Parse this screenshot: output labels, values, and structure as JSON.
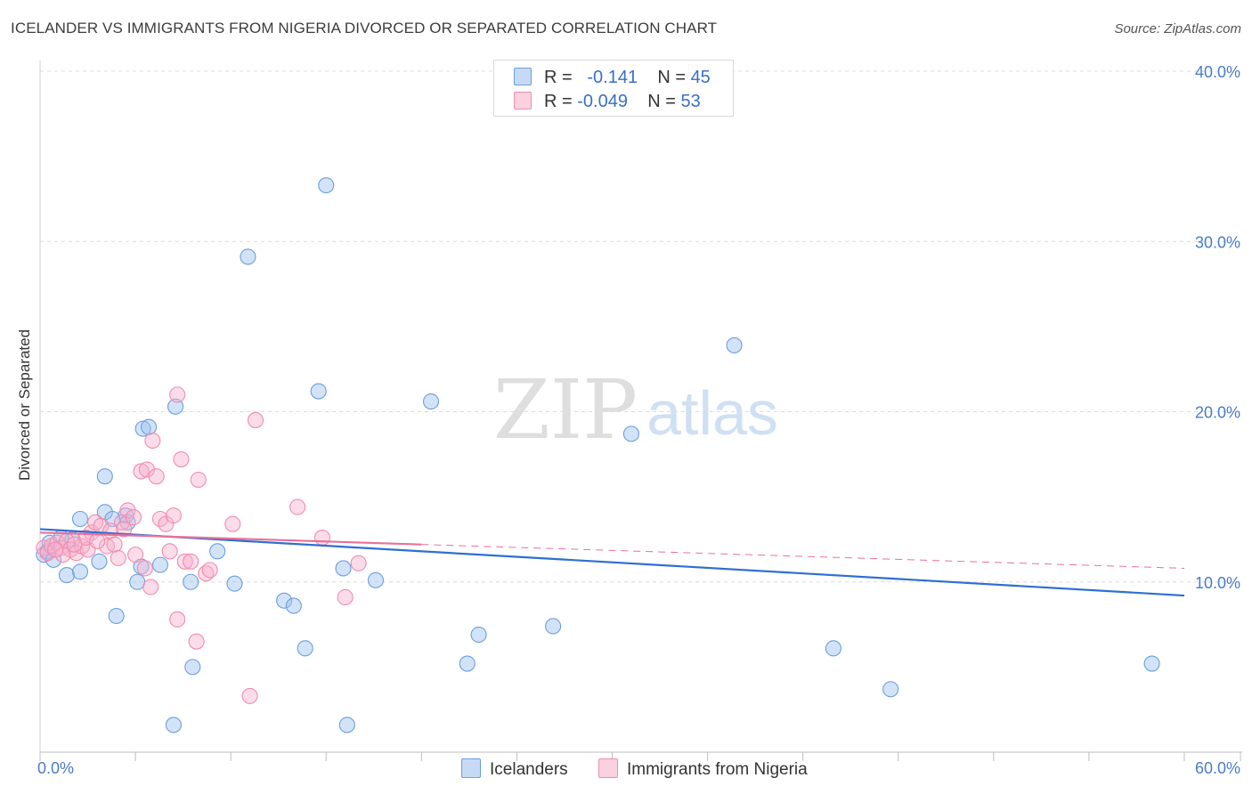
{
  "title": "ICELANDER VS IMMIGRANTS FROM NIGERIA DIVORCED OR SEPARATED CORRELATION CHART",
  "source": "Source: ZipAtlas.com",
  "watermark": {
    "zip": "ZIP",
    "atlas": "atlas"
  },
  "legend": {
    "rows": [
      {
        "r_label": "R =",
        "r_value": "-0.141",
        "n_label": "N =",
        "n_value": "45",
        "color": "#6a9ee0"
      },
      {
        "r_label": "R =",
        "r_value": "-0.049",
        "n_label": "N =",
        "n_value": "53",
        "color": "#f08cb0"
      }
    ]
  },
  "bottom_legend": {
    "series1": "Icelanders",
    "series2": "Immigrants from Nigeria"
  },
  "chart_data": {
    "type": "scatter",
    "title": "ICELANDER VS IMMIGRANTS FROM NIGERIA DIVORCED OR SEPARATED CORRELATION CHART",
    "ylabel": "Divorced or Separated",
    "xlabel": "",
    "xlim": [
      0,
      60
    ],
    "ylim": [
      0,
      40
    ],
    "x_tick_labels": [
      "0.0%",
      "60.0%"
    ],
    "y_ticks": [
      10,
      20,
      30,
      40
    ],
    "y_tick_labels": [
      "10.0%",
      "20.0%",
      "30.0%",
      "40.0%"
    ],
    "series": [
      {
        "name": "Icelanders",
        "color": "#6a9ee0",
        "line_color": "#2e6fd0",
        "trend": {
          "x0": 0,
          "y0": 13.1,
          "x1": 60,
          "y1": 9.2,
          "dashed_from": null
        },
        "points": [
          [
            0.2,
            11.6
          ],
          [
            0.4,
            11.8
          ],
          [
            0.7,
            11.3
          ],
          [
            0.5,
            12.3
          ],
          [
            1.4,
            10.4
          ],
          [
            2.1,
            10.6
          ],
          [
            1.7,
            12.5
          ],
          [
            2.1,
            13.7
          ],
          [
            3.1,
            11.2
          ],
          [
            3.4,
            16.2
          ],
          [
            3.4,
            14.1
          ],
          [
            3.8,
            13.7
          ],
          [
            4.5,
            13.9
          ],
          [
            4.6,
            13.5
          ],
          [
            4.0,
            8.0
          ],
          [
            5.1,
            10.0
          ],
          [
            5.3,
            10.9
          ],
          [
            5.4,
            19.0
          ],
          [
            5.7,
            19.1
          ],
          [
            6.3,
            11.0
          ],
          [
            7.1,
            20.3
          ],
          [
            7.9,
            10.0
          ],
          [
            8.0,
            5.0
          ],
          [
            9.3,
            11.8
          ],
          [
            10.2,
            9.9
          ],
          [
            10.9,
            29.1
          ],
          [
            12.8,
            8.9
          ],
          [
            13.3,
            8.6
          ],
          [
            13.9,
            6.1
          ],
          [
            14.6,
            21.2
          ],
          [
            15.0,
            33.3
          ],
          [
            15.9,
            10.8
          ],
          [
            16.1,
            1.6
          ],
          [
            17.6,
            10.1
          ],
          [
            20.5,
            20.6
          ],
          [
            22.4,
            5.2
          ],
          [
            23.0,
            6.9
          ],
          [
            26.9,
            7.4
          ],
          [
            31.0,
            18.7
          ],
          [
            36.4,
            23.9
          ],
          [
            41.6,
            6.1
          ],
          [
            44.6,
            3.7
          ],
          [
            58.3,
            5.2
          ],
          [
            7.0,
            1.6
          ],
          [
            1.1,
            12.6
          ]
        ]
      },
      {
        "name": "Immigrants from Nigeria",
        "color": "#f08cb0",
        "line_color": "#e8709a",
        "trend": {
          "x0": 0,
          "y0": 12.9,
          "x1": 60,
          "y1": 10.8,
          "dashed_from": 20
        },
        "points": [
          [
            0.2,
            12.0
          ],
          [
            0.4,
            11.7
          ],
          [
            0.6,
            12.1
          ],
          [
            0.9,
            12.3
          ],
          [
            1.1,
            12.0
          ],
          [
            1.4,
            12.4
          ],
          [
            1.6,
            11.9
          ],
          [
            1.9,
            11.7
          ],
          [
            2.2,
            12.1
          ],
          [
            2.5,
            11.9
          ],
          [
            2.7,
            12.9
          ],
          [
            2.9,
            13.5
          ],
          [
            3.2,
            13.3
          ],
          [
            3.5,
            12.1
          ],
          [
            3.7,
            13.0
          ],
          [
            3.9,
            12.2
          ],
          [
            4.1,
            11.4
          ],
          [
            4.3,
            13.5
          ],
          [
            4.6,
            14.2
          ],
          [
            4.9,
            13.8
          ],
          [
            5.0,
            11.6
          ],
          [
            5.3,
            16.5
          ],
          [
            5.5,
            10.8
          ],
          [
            5.6,
            16.6
          ],
          [
            5.8,
            9.7
          ],
          [
            5.9,
            18.3
          ],
          [
            6.1,
            16.2
          ],
          [
            6.3,
            13.7
          ],
          [
            6.6,
            13.4
          ],
          [
            6.8,
            11.8
          ],
          [
            7.0,
            13.9
          ],
          [
            7.2,
            21.0
          ],
          [
            7.4,
            17.2
          ],
          [
            7.6,
            11.2
          ],
          [
            7.9,
            11.2
          ],
          [
            8.3,
            16.0
          ],
          [
            8.7,
            10.5
          ],
          [
            8.9,
            10.7
          ],
          [
            10.1,
            13.4
          ],
          [
            11.3,
            19.5
          ],
          [
            13.5,
            14.4
          ],
          [
            14.8,
            12.6
          ],
          [
            16.0,
            9.1
          ],
          [
            16.7,
            11.1
          ],
          [
            7.2,
            7.8
          ],
          [
            8.2,
            6.5
          ],
          [
            11.0,
            3.3
          ],
          [
            2.4,
            12.6
          ],
          [
            1.2,
            11.6
          ],
          [
            3.0,
            12.4
          ],
          [
            4.4,
            13.1
          ],
          [
            1.8,
            12.2
          ],
          [
            0.8,
            11.9
          ]
        ]
      }
    ]
  }
}
